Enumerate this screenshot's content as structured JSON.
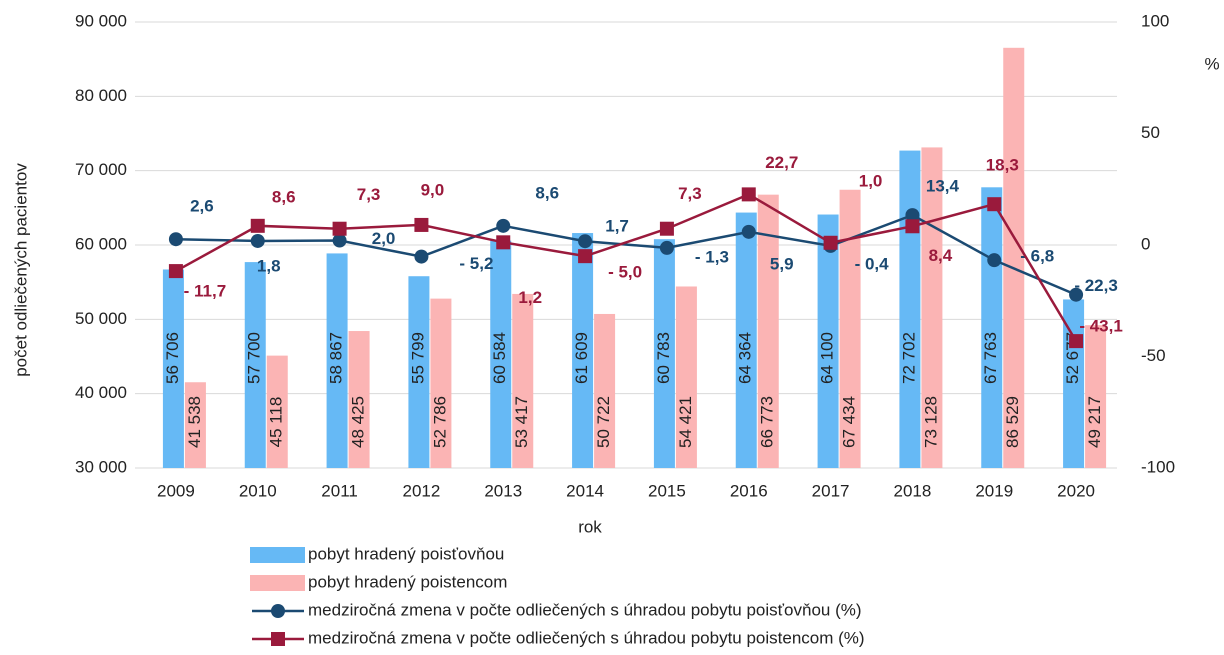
{
  "chart_data": {
    "type": "bar_line",
    "categories": [
      "2009",
      "2010",
      "2011",
      "2012",
      "2013",
      "2014",
      "2015",
      "2016",
      "2017",
      "2018",
      "2019",
      "2020"
    ],
    "xlabel": "rok",
    "ylabel": "počet odliečených pacientov",
    "y2label": "%",
    "ylim": [
      30000,
      90000
    ],
    "yticks": [
      {
        "value": 30000,
        "label": "30 000"
      },
      {
        "value": 40000,
        "label": "40 000"
      },
      {
        "value": 50000,
        "label": "50 000"
      },
      {
        "value": 60000,
        "label": "60 000"
      },
      {
        "value": 70000,
        "label": "70 000"
      },
      {
        "value": 80000,
        "label": "80 000"
      },
      {
        "value": 90000,
        "label": "90 000"
      }
    ],
    "y2lim": [
      -100,
      100
    ],
    "y2ticks": [
      -100,
      -50,
      0,
      50,
      100
    ],
    "grid": true,
    "series": [
      {
        "name": "pobyt hradený poisťovňou",
        "type": "bar",
        "color": "#66b9f5",
        "values": [
          56706,
          57700,
          58867,
          55799,
          60584,
          61609,
          60783,
          64364,
          64100,
          72702,
          67763,
          52677
        ],
        "value_labels": [
          "56 706",
          "57 700",
          "58 867",
          "55 799",
          "60 584",
          "61 609",
          "60 783",
          "64 364",
          "64 100",
          "72 702",
          "67 763",
          "52 677"
        ]
      },
      {
        "name": "pobyt hradený poistencom",
        "type": "bar",
        "color": "#fbb4b4",
        "values": [
          41538,
          45118,
          48425,
          52786,
          53417,
          50722,
          54421,
          66773,
          67434,
          73128,
          86529,
          49217
        ],
        "value_labels": [
          "41 538",
          "45 118",
          "48 425",
          "52 786",
          "53 417",
          "50 722",
          "54 421",
          "66 773",
          "67 434",
          "73 128",
          "86 529",
          "49 217"
        ]
      },
      {
        "name": "medziročná zmena v počte odliečených s úhradou pobytu poisťovňou (%)",
        "type": "line",
        "axis": "y2",
        "color": "#1b4a72",
        "values": [
          2.6,
          1.8,
          2.0,
          -5.2,
          8.6,
          1.7,
          -1.3,
          5.9,
          -0.4,
          13.4,
          -6.8,
          -22.3
        ],
        "value_labels": [
          "2,6",
          "1,8",
          "2,0",
          "- 5,2",
          "8,6",
          "1,7",
          "- 1,3",
          "5,9",
          "- 0,4",
          "13,4",
          "- 6,8",
          "- 22,3"
        ]
      },
      {
        "name": "medziročná zmena v počte odliečených s úhradou pobytu poistencom (%)",
        "type": "line",
        "axis": "y2",
        "color": "#9a1a3c",
        "values": [
          -11.7,
          8.6,
          7.3,
          9.0,
          1.2,
          -5.0,
          7.3,
          22.7,
          1.0,
          8.4,
          18.3,
          -43.1
        ],
        "value_labels": [
          "- 11,7",
          "8,6",
          "7,3",
          "9,0",
          "1,2",
          "- 5,0",
          "7,3",
          "22,7",
          "1,0",
          "8,4",
          "18,3",
          "- 43,1"
        ]
      }
    ]
  }
}
